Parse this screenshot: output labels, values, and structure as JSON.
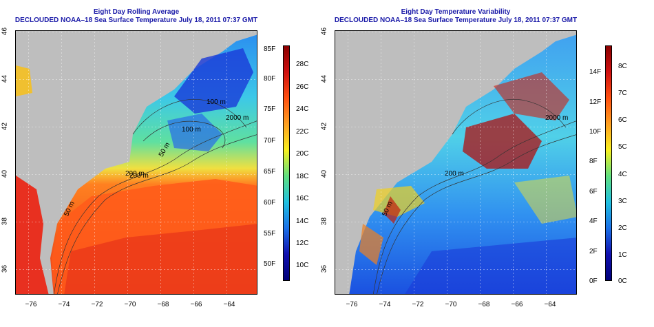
{
  "left": {
    "title": "Eight Day Rolling Average",
    "subtitle": "DECLOUDED NOAA–18 Sea Surface Temperature July 18, 2011 07:37 GMT",
    "x_ticks": [
      "−76",
      "−74",
      "−72",
      "−70",
      "−68",
      "−66",
      "−64"
    ],
    "y_ticks": [
      "46",
      "44",
      "42",
      "40",
      "38",
      "36"
    ],
    "contours": [
      "100 m",
      "200 m",
      "2000 m",
      "50 m",
      "100 m",
      "200 m",
      "50 m"
    ],
    "colorbar_f": [
      "85F",
      "80F",
      "75F",
      "70F",
      "65F",
      "60F",
      "55F",
      "50F"
    ],
    "colorbar_c": [
      "28C",
      "26C",
      "24C",
      "22C",
      "20C",
      "18C",
      "16C",
      "14C",
      "12C",
      "10C"
    ]
  },
  "right": {
    "title": "Eight Day Temperature Variability",
    "subtitle": "DECLOUDED NOAA–18 Sea Surface Temperature July 18, 2011 07:37 GMT",
    "x_ticks": [
      "−76",
      "−74",
      "−72",
      "−70",
      "−68",
      "−66",
      "−64"
    ],
    "y_ticks": [
      "46",
      "44",
      "42",
      "40",
      "38",
      "36"
    ],
    "contours": [
      "2000 m",
      "200 m",
      "50 m"
    ],
    "colorbar_f": [
      "14F",
      "12F",
      "10F",
      "8F",
      "6F",
      "4F",
      "2F",
      "0F"
    ],
    "colorbar_c": [
      "8C",
      "7C",
      "6C",
      "5C",
      "4C",
      "3C",
      "2C",
      "1C",
      "0C"
    ]
  },
  "colors": {
    "title": "#1a1aa8",
    "land": "#bebebe"
  }
}
